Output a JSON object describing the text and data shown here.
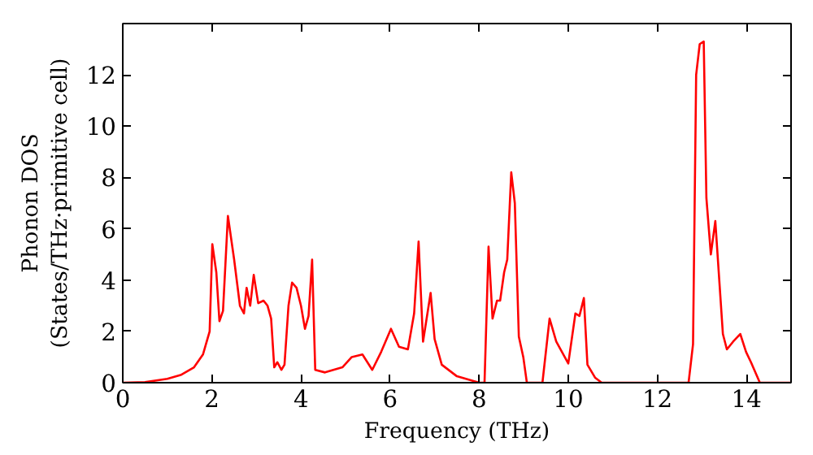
{
  "chart_data": {
    "type": "line",
    "xlabel": "Frequency (THz)",
    "ylabel": "Phonon DOS\n(States/THz·primitive cell)",
    "xlim": [
      0,
      15
    ],
    "ylim": [
      0,
      14
    ],
    "xticks": [
      0,
      2,
      4,
      6,
      8,
      10,
      12,
      14
    ],
    "yticks": [
      0,
      2,
      4,
      6,
      8,
      10,
      12
    ],
    "grid": false,
    "series": [
      {
        "color": "#ff0000",
        "x": [
          0,
          0.5,
          1.0,
          1.3,
          1.6,
          1.8,
          1.95,
          2.01,
          2.1,
          2.17,
          2.25,
          2.36,
          2.5,
          2.63,
          2.72,
          2.78,
          2.86,
          2.94,
          3.04,
          3.16,
          3.25,
          3.33,
          3.4,
          3.47,
          3.56,
          3.63,
          3.72,
          3.8,
          3.9,
          4.0,
          4.09,
          4.17,
          4.25,
          4.32,
          4.54,
          4.93,
          5.14,
          5.38,
          5.6,
          5.8,
          6.02,
          6.2,
          6.4,
          6.54,
          6.64,
          6.74,
          6.91,
          7.0,
          7.16,
          7.5,
          8.0,
          8.12,
          8.21,
          8.3,
          8.4,
          8.47,
          8.56,
          8.63,
          8.72,
          8.8,
          8.89,
          8.99,
          9.07,
          9.42,
          9.58,
          9.73,
          10.0,
          10.16,
          10.25,
          10.35,
          10.43,
          10.6,
          10.75,
          12.7,
          12.8,
          12.87,
          12.95,
          13.04,
          13.1,
          13.2,
          13.3,
          13.47,
          13.56,
          13.7,
          13.86,
          13.99,
          14.1,
          14.3,
          15
        ],
        "values": [
          0,
          0.02,
          0.15,
          0.3,
          0.6,
          1.1,
          2.0,
          5.4,
          4.3,
          2.4,
          2.8,
          6.5,
          4.8,
          3.0,
          2.7,
          3.7,
          3.0,
          4.2,
          3.1,
          3.2,
          3.0,
          2.5,
          0.6,
          0.8,
          0.5,
          0.7,
          3.0,
          3.9,
          3.7,
          3.0,
          2.1,
          2.6,
          4.8,
          0.5,
          0.4,
          0.6,
          1.0,
          1.1,
          0.5,
          1.2,
          2.1,
          1.4,
          1.3,
          2.7,
          5.5,
          1.6,
          3.5,
          1.7,
          0.7,
          0.25,
          0,
          0,
          5.3,
          2.5,
          3.2,
          3.2,
          4.3,
          4.8,
          8.2,
          7.0,
          1.8,
          1.0,
          0,
          0,
          2.5,
          1.6,
          0.75,
          2.7,
          2.6,
          3.3,
          0.7,
          0.2,
          0,
          0,
          1.5,
          12.0,
          13.2,
          13.3,
          7.2,
          5.0,
          6.3,
          1.9,
          1.3,
          1.6,
          1.9,
          1.2,
          0.8,
          0,
          0
        ]
      }
    ]
  }
}
